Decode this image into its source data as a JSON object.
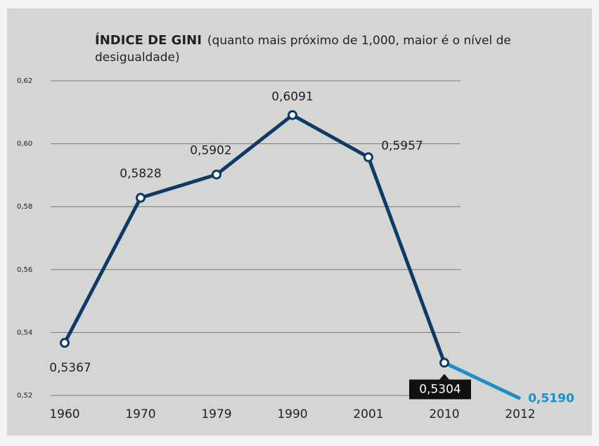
{
  "chart_data": {
    "type": "line",
    "title": "ÍNDICE DE GINI",
    "subtitle": "(quanto mais próximo de 1,000, maior é o nível de desigualdade)",
    "categories": [
      "1960",
      "1970",
      "1979",
      "1990",
      "2001",
      "2010",
      "2012"
    ],
    "values": [
      0.5367,
      0.5828,
      0.5902,
      0.6091,
      0.5957,
      0.5304,
      0.519
    ],
    "value_labels": [
      "0,5367",
      "0,5828",
      "0,5902",
      "0,6091",
      "0,5957",
      "0,5304",
      "0,5190"
    ],
    "color": "#0d3a66",
    "highlight_color": "#1b8fc8",
    "ylim": [
      0.52,
      0.62
    ],
    "yticks": [
      {
        "value": 0.52,
        "label": "0,52"
      },
      {
        "value": 0.54,
        "label": "0,54"
      },
      {
        "value": 0.56,
        "label": "0,56"
      },
      {
        "value": 0.58,
        "label": "0,58"
      },
      {
        "value": 0.6,
        "label": "0,60"
      },
      {
        "value": 0.62,
        "label": "0,62"
      }
    ],
    "grid": true
  }
}
